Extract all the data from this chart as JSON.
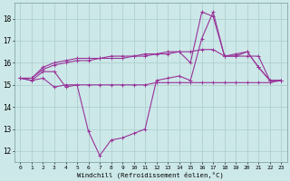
{
  "x": [
    0,
    1,
    2,
    3,
    4,
    5,
    6,
    7,
    8,
    9,
    10,
    11,
    12,
    13,
    14,
    15,
    16,
    17,
    18,
    19,
    20,
    21,
    22,
    23
  ],
  "line1": [
    15.3,
    15.2,
    15.6,
    15.6,
    14.9,
    15.0,
    12.9,
    11.8,
    12.5,
    12.6,
    12.8,
    13.0,
    15.2,
    15.3,
    15.4,
    15.2,
    17.1,
    18.3,
    16.3,
    16.3,
    16.5,
    15.8,
    15.2,
    15.2
  ],
  "line2": [
    15.3,
    15.2,
    15.3,
    14.9,
    15.0,
    15.0,
    15.0,
    15.0,
    15.0,
    15.0,
    15.0,
    15.0,
    15.1,
    15.1,
    15.1,
    15.1,
    15.1,
    15.1,
    15.1,
    15.1,
    15.1,
    15.1,
    15.1,
    15.2
  ],
  "line3": [
    15.3,
    15.3,
    15.7,
    15.9,
    16.0,
    16.1,
    16.1,
    16.2,
    16.2,
    16.2,
    16.3,
    16.3,
    16.4,
    16.4,
    16.5,
    16.5,
    16.6,
    16.6,
    16.3,
    16.4,
    16.5,
    15.8,
    15.2,
    15.2
  ],
  "line4": [
    15.3,
    15.3,
    15.8,
    16.0,
    16.1,
    16.2,
    16.2,
    16.2,
    16.3,
    16.3,
    16.3,
    16.4,
    16.4,
    16.5,
    16.5,
    16.0,
    18.3,
    18.1,
    16.3,
    16.3,
    16.3,
    16.3,
    15.2,
    15.2
  ],
  "bg_color": "#cce8e8",
  "grid_color": "#aacccc",
  "line_color": "#993399",
  "xlabel": "Windchill (Refroidissement éolien,°C)",
  "ylim": [
    11.5,
    18.7
  ],
  "yticks": [
    12,
    13,
    14,
    15,
    16,
    17,
    18
  ],
  "xticks": [
    0,
    1,
    2,
    3,
    4,
    5,
    6,
    7,
    8,
    9,
    10,
    11,
    12,
    13,
    14,
    15,
    16,
    17,
    18,
    19,
    20,
    21,
    22,
    23
  ]
}
